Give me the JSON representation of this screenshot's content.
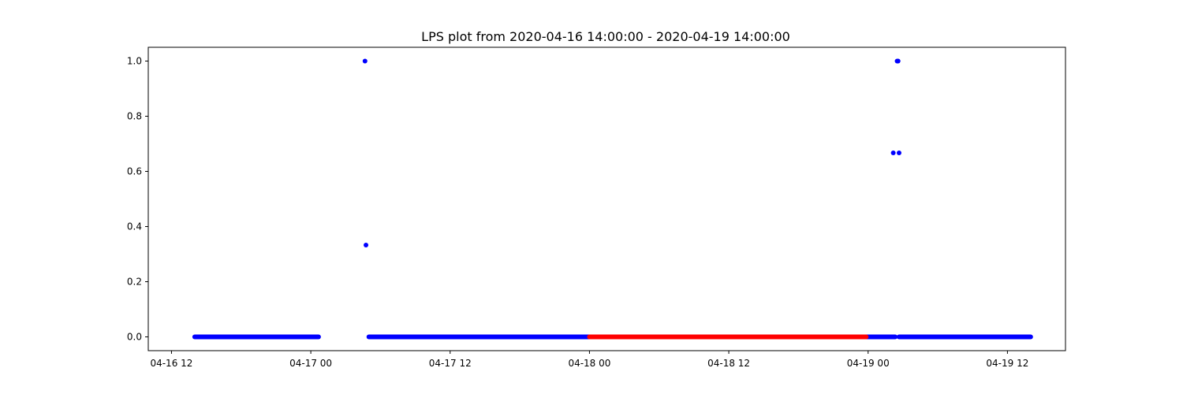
{
  "chart_data": {
    "type": "scatter",
    "title": "LPS plot from 2020-04-16 14:00:00 - 2020-04-19 14:00:00",
    "xlabel": "",
    "ylabel": "",
    "x_range": [
      "2020-04-16 10:00",
      "2020-04-19 17:00"
    ],
    "ylim": [
      -0.05,
      1.05
    ],
    "x_ticks": [
      {
        "time": "2020-04-16 12:00",
        "label": "04-16 12"
      },
      {
        "time": "2020-04-17 00:00",
        "label": "04-17 00"
      },
      {
        "time": "2020-04-17 12:00",
        "label": "04-17 12"
      },
      {
        "time": "2020-04-18 00:00",
        "label": "04-18 00"
      },
      {
        "time": "2020-04-18 12:00",
        "label": "04-18 12"
      },
      {
        "time": "2020-04-19 00:00",
        "label": "04-19 00"
      },
      {
        "time": "2020-04-19 12:00",
        "label": "04-19 12"
      }
    ],
    "y_ticks": [
      {
        "value": 0.0,
        "label": "0.0"
      },
      {
        "value": 0.2,
        "label": "0.2"
      },
      {
        "value": 0.4,
        "label": "0.4"
      },
      {
        "value": 0.6,
        "label": "0.6"
      },
      {
        "value": 0.8,
        "label": "0.8"
      },
      {
        "value": 1.0,
        "label": "1.0"
      }
    ],
    "grid": false,
    "legend": "none",
    "series": [
      {
        "color": "#0000ff",
        "segments": [
          {
            "start": "2020-04-16 14:00",
            "end": "2020-04-17 00:40",
            "y": 0
          },
          {
            "start": "2020-04-17 05:00",
            "end": "2020-04-18 00:00",
            "y": 0
          },
          {
            "start": "2020-04-18 23:50",
            "end": "2020-04-19 02:20",
            "y": 0
          },
          {
            "start": "2020-04-19 02:40",
            "end": "2020-04-19 14:00",
            "y": 0
          }
        ],
        "points": [
          {
            "x": "2020-04-17 04:40",
            "y": 1.0
          },
          {
            "x": "2020-04-17 04:45",
            "y": 0.333
          },
          {
            "x": "2020-04-19 02:10",
            "y": 0.667
          },
          {
            "x": "2020-04-19 02:30",
            "y": 1.0
          },
          {
            "x": "2020-04-19 02:35",
            "y": 1.0
          },
          {
            "x": "2020-04-19 02:40",
            "y": 0.667
          }
        ]
      },
      {
        "color": "#ff0000",
        "segments": [
          {
            "start": "2020-04-18 00:00",
            "end": "2020-04-18 23:50",
            "y": 0
          }
        ],
        "points": []
      }
    ]
  }
}
